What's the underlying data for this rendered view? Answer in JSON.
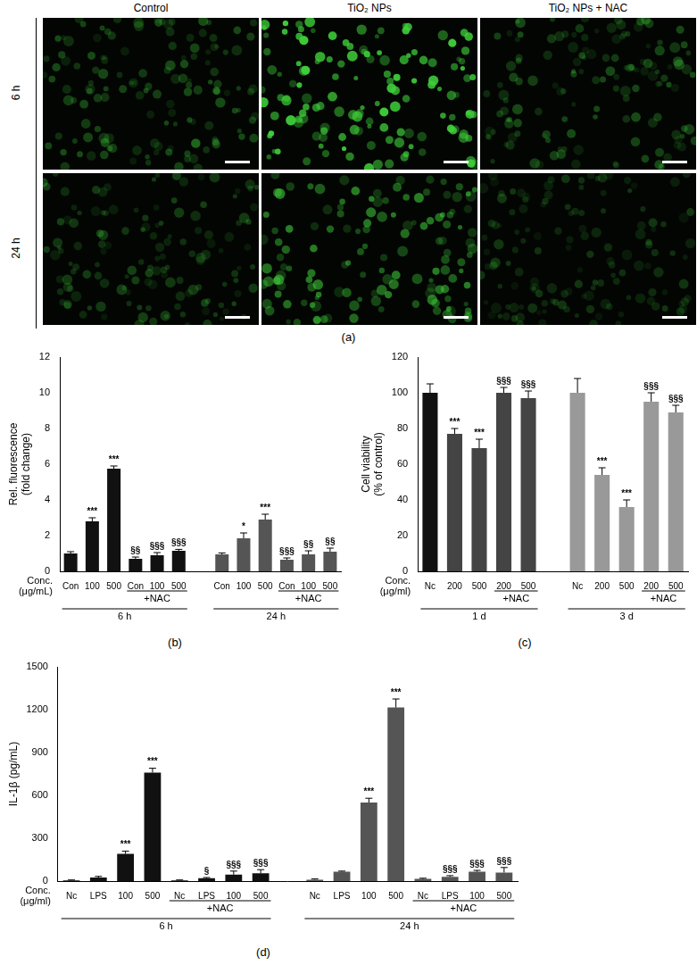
{
  "image_panel": {
    "label": "(a)",
    "columns": [
      "Control",
      "TiO₂ NPs",
      "TiO₂ NPs + NAC"
    ],
    "rows": [
      "6 h",
      "24 h"
    ]
  },
  "chart_data": [
    {
      "type": "bar",
      "panel": "(b)",
      "y_label": [
        "Rel. fluorescence",
        "(fold change)"
      ],
      "x_label": [
        "Conc.",
        "(μg/mL)"
      ],
      "ylim": [
        0,
        12
      ],
      "yticks": [
        0,
        2,
        4,
        6,
        8,
        10,
        12
      ],
      "grid": false,
      "categories": [
        "Con",
        "100",
        "500",
        "Con",
        "100",
        "500",
        null,
        "Con",
        "100",
        "500",
        "Con",
        "100",
        "500"
      ],
      "values": [
        1.0,
        2.8,
        5.75,
        0.7,
        0.9,
        1.15,
        null,
        0.95,
        1.85,
        2.9,
        0.65,
        0.95,
        1.1
      ],
      "error": [
        0.1,
        0.2,
        0.15,
        0.1,
        0.15,
        0.08,
        null,
        0.08,
        0.3,
        0.3,
        0.1,
        0.2,
        0.2
      ],
      "marks": [
        null,
        "***",
        "***",
        "§§",
        "§§§",
        "§§§",
        null,
        null,
        "*",
        "***",
        "§§§",
        "§§",
        "§§"
      ],
      "subgroups": [
        null,
        null,
        null,
        "+NAC",
        "+NAC",
        "+NAC",
        null,
        null,
        null,
        null,
        "+NAC",
        "+NAC",
        "+NAC"
      ],
      "groups": [
        "6 h",
        "6 h",
        "6 h",
        "6 h",
        "6 h",
        "6 h",
        null,
        "24 h",
        "24 h",
        "24 h",
        "24 h",
        "24 h",
        "24 h"
      ],
      "colors": [
        "#111111",
        "#111111",
        "#111111",
        "#111111",
        "#111111",
        "#111111",
        null,
        "#555555",
        "#555555",
        "#555555",
        "#555555",
        "#555555",
        "#555555"
      ]
    },
    {
      "type": "bar",
      "panel": "(c)",
      "y_label": [
        "Cell viability",
        "(% of control)"
      ],
      "x_label": [
        "Conc.",
        "(μg/ml)"
      ],
      "ylim": [
        0,
        120
      ],
      "yticks": [
        0,
        20,
        40,
        60,
        80,
        100,
        120
      ],
      "grid": false,
      "categories": [
        "Nc",
        "200",
        "500",
        "200",
        "500",
        null,
        "Nc",
        "200",
        "500",
        "200",
        "500"
      ],
      "values": [
        100,
        77,
        69,
        100,
        97,
        null,
        100,
        54,
        36,
        95,
        89
      ],
      "error": [
        5,
        3,
        5,
        3,
        4,
        null,
        8,
        4,
        4,
        5,
        4
      ],
      "marks": [
        null,
        "***",
        "***",
        "§§§",
        "§§§",
        null,
        null,
        "***",
        "***",
        "§§§",
        "§§§"
      ],
      "subgroups": [
        null,
        null,
        null,
        "+NAC",
        "+NAC",
        null,
        null,
        null,
        null,
        "+NAC",
        "+NAC"
      ],
      "groups": [
        "1 d",
        "1 d",
        "1 d",
        "1 d",
        "1 d",
        null,
        "3 d",
        "3 d",
        "3 d",
        "3 d",
        "3 d"
      ],
      "colors": [
        "#111111",
        "#444444",
        "#444444",
        "#444444",
        "#444444",
        null,
        "#999999",
        "#999999",
        "#999999",
        "#999999",
        "#999999"
      ]
    },
    {
      "type": "bar",
      "panel": "(d)",
      "y_label": [
        "IL-1β (pg/mL)"
      ],
      "x_label": [
        "Conc.",
        "(μg/ml)"
      ],
      "ylim": [
        0,
        1500
      ],
      "yticks": [
        0,
        300,
        600,
        900,
        1200,
        1500
      ],
      "grid": false,
      "categories": [
        "Nc",
        "LPS",
        "100",
        "500",
        "Nc",
        "LPS",
        "100",
        "500",
        null,
        "Nc",
        "LPS",
        "100",
        "500",
        "Nc",
        "LPS",
        "100",
        "500"
      ],
      "values": [
        5,
        25,
        190,
        760,
        5,
        20,
        45,
        55,
        null,
        10,
        65,
        550,
        1215,
        15,
        30,
        65,
        60
      ],
      "error": [
        3,
        8,
        20,
        30,
        3,
        5,
        25,
        25,
        null,
        5,
        5,
        30,
        60,
        5,
        8,
        10,
        35
      ],
      "marks": [
        null,
        null,
        "***",
        "***",
        null,
        "§",
        "§§§",
        "§§§",
        null,
        null,
        null,
        "***",
        "***",
        null,
        "§§§",
        "§§§",
        "§§§"
      ],
      "subgroups": [
        null,
        null,
        null,
        null,
        "+NAC",
        "+NAC",
        "+NAC",
        "+NAC",
        null,
        null,
        null,
        null,
        null,
        "+NAC",
        "+NAC",
        "+NAC",
        "+NAC"
      ],
      "groups": [
        "6 h",
        "6 h",
        "6 h",
        "6 h",
        "6 h",
        "6 h",
        "6 h",
        "6 h",
        null,
        "24 h",
        "24 h",
        "24 h",
        "24 h",
        "24 h",
        "24 h",
        "24 h",
        "24 h"
      ],
      "colors": [
        "#111111",
        "#111111",
        "#111111",
        "#111111",
        "#111111",
        "#111111",
        "#111111",
        "#111111",
        null,
        "#555555",
        "#555555",
        "#555555",
        "#555555",
        "#555555",
        "#555555",
        "#555555",
        "#555555"
      ]
    }
  ]
}
